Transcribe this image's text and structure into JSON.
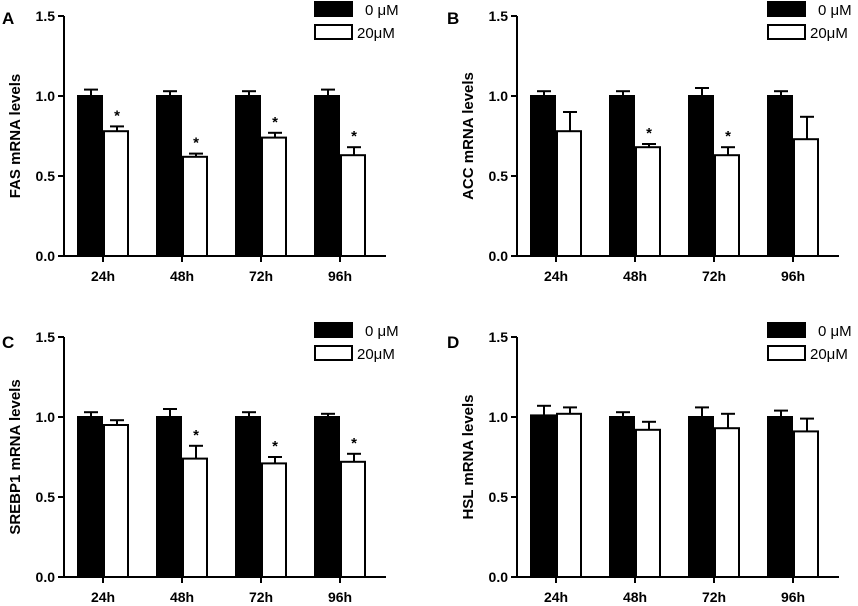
{
  "figure": {
    "background": "#ffffff",
    "bar_color_control": "#000000",
    "bar_color_treated": "#ffffff"
  },
  "chart_data": [
    {
      "panel": "A",
      "type": "bar",
      "ylabel": "FAS mRNA levels",
      "ylim": [
        0,
        1.5
      ],
      "yticks": [
        "0.0",
        "0.5",
        "1.0",
        "1.5"
      ],
      "categories": [
        "24h",
        "48h",
        "72h",
        "96h"
      ],
      "series": [
        {
          "name": "0 μM",
          "values": [
            1.0,
            1.0,
            1.0,
            1.0
          ],
          "errors": [
            0.04,
            0.03,
            0.03,
            0.04
          ]
        },
        {
          "name": "20μM",
          "values": [
            0.78,
            0.62,
            0.74,
            0.63
          ],
          "errors": [
            0.03,
            0.02,
            0.03,
            0.05
          ]
        }
      ],
      "significance": [
        "*",
        "*",
        "*",
        "*"
      ]
    },
    {
      "panel": "B",
      "type": "bar",
      "ylabel": "ACC mRNA levels",
      "ylim": [
        0,
        1.5
      ],
      "yticks": [
        "0.0",
        "0.5",
        "1.0",
        "1.5"
      ],
      "categories": [
        "24h",
        "48h",
        "72h",
        "96h"
      ],
      "series": [
        {
          "name": "0 μM",
          "values": [
            1.0,
            1.0,
            1.0,
            1.0
          ],
          "errors": [
            0.03,
            0.03,
            0.05,
            0.03
          ]
        },
        {
          "name": "20μM",
          "values": [
            0.78,
            0.68,
            0.63,
            0.73
          ],
          "errors": [
            0.12,
            0.02,
            0.05,
            0.14
          ]
        }
      ],
      "significance": [
        "",
        "*",
        "*",
        ""
      ]
    },
    {
      "panel": "C",
      "type": "bar",
      "ylabel": "SREBP1 mRNA levels",
      "ylim": [
        0,
        1.5
      ],
      "yticks": [
        "0.0",
        "0.5",
        "1.0",
        "1.5"
      ],
      "categories": [
        "24h",
        "48h",
        "72h",
        "96h"
      ],
      "series": [
        {
          "name": "0 μM",
          "values": [
            1.0,
            1.0,
            1.0,
            1.0
          ],
          "errors": [
            0.03,
            0.05,
            0.03,
            0.02
          ]
        },
        {
          "name": "20μM",
          "values": [
            0.95,
            0.74,
            0.71,
            0.72
          ],
          "errors": [
            0.03,
            0.08,
            0.04,
            0.05
          ]
        }
      ],
      "significance": [
        "",
        "*",
        "*",
        "*"
      ]
    },
    {
      "panel": "D",
      "type": "bar",
      "ylabel": "HSL mRNA levels",
      "ylim": [
        0,
        1.5
      ],
      "yticks": [
        "0.0",
        "0.5",
        "1.0",
        "1.5"
      ],
      "categories": [
        "24h",
        "48h",
        "72h",
        "96h"
      ],
      "series": [
        {
          "name": "0 μM",
          "values": [
            1.01,
            1.0,
            1.0,
            1.0
          ],
          "errors": [
            0.06,
            0.03,
            0.06,
            0.04
          ]
        },
        {
          "name": "20μM",
          "values": [
            1.02,
            0.92,
            0.93,
            0.91
          ],
          "errors": [
            0.04,
            0.05,
            0.09,
            0.08
          ]
        }
      ],
      "significance": [
        "",
        "",
        "",
        ""
      ]
    }
  ]
}
